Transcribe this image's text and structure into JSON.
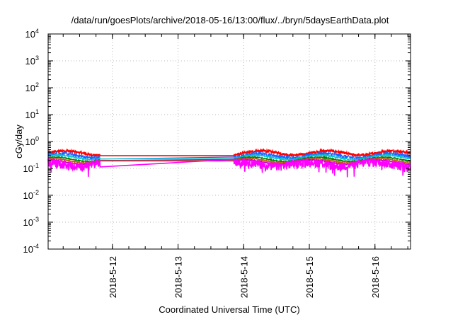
{
  "chart_data": {
    "type": "line",
    "title": "/data/run/goesPlots/archive/2018-05-16/13:00/flux/../bryn/5daysEarthData.plot",
    "xlabel": "Coordinated Universal Time (UTC)",
    "ylabel": "cGy/day",
    "yscale": "log",
    "ylim": [
      0.0001,
      10000
    ],
    "yticks": [
      {
        "value": 0.0001,
        "base": "10",
        "exp": "-4"
      },
      {
        "value": 0.001,
        "base": "10",
        "exp": "-3"
      },
      {
        "value": 0.01,
        "base": "10",
        "exp": "-2"
      },
      {
        "value": 0.1,
        "base": "10",
        "exp": "-1"
      },
      {
        "value": 1,
        "base": "10",
        "exp": "0"
      },
      {
        "value": 10,
        "base": "10",
        "exp": "1"
      },
      {
        "value": 100,
        "base": "10",
        "exp": "2"
      },
      {
        "value": 1000,
        "base": "10",
        "exp": "3"
      },
      {
        "value": 10000,
        "base": "10",
        "exp": "4"
      }
    ],
    "xlim": [
      "2018-05-11T00:30",
      "2018-05-16T13:00"
    ],
    "xticks": [
      "2018-5-12",
      "2018-5-13",
      "2018-5-14",
      "2018-5-15",
      "2018-5-16"
    ],
    "grid": true,
    "data_gap": [
      "2018-05-11T19:30",
      "2018-05-13T20:20"
    ],
    "series": [
      {
        "color": "#ff0000",
        "base": 0.38,
        "noise": 0.1
      },
      {
        "color": "#2060ff",
        "base": 0.3,
        "noise": 0.16
      },
      {
        "color": "#00c8d0",
        "base": 0.26,
        "noise": 0.06
      },
      {
        "color": "#008000",
        "base": 0.22,
        "noise": 0.05
      },
      {
        "color": "#c06000",
        "base": 0.195,
        "noise": 0.05
      },
      {
        "color": "#c000c0",
        "base": 0.175,
        "noise": 0.05
      },
      {
        "color": "#ff00ff",
        "base": 0.15,
        "noise": 0.35
      }
    ]
  }
}
